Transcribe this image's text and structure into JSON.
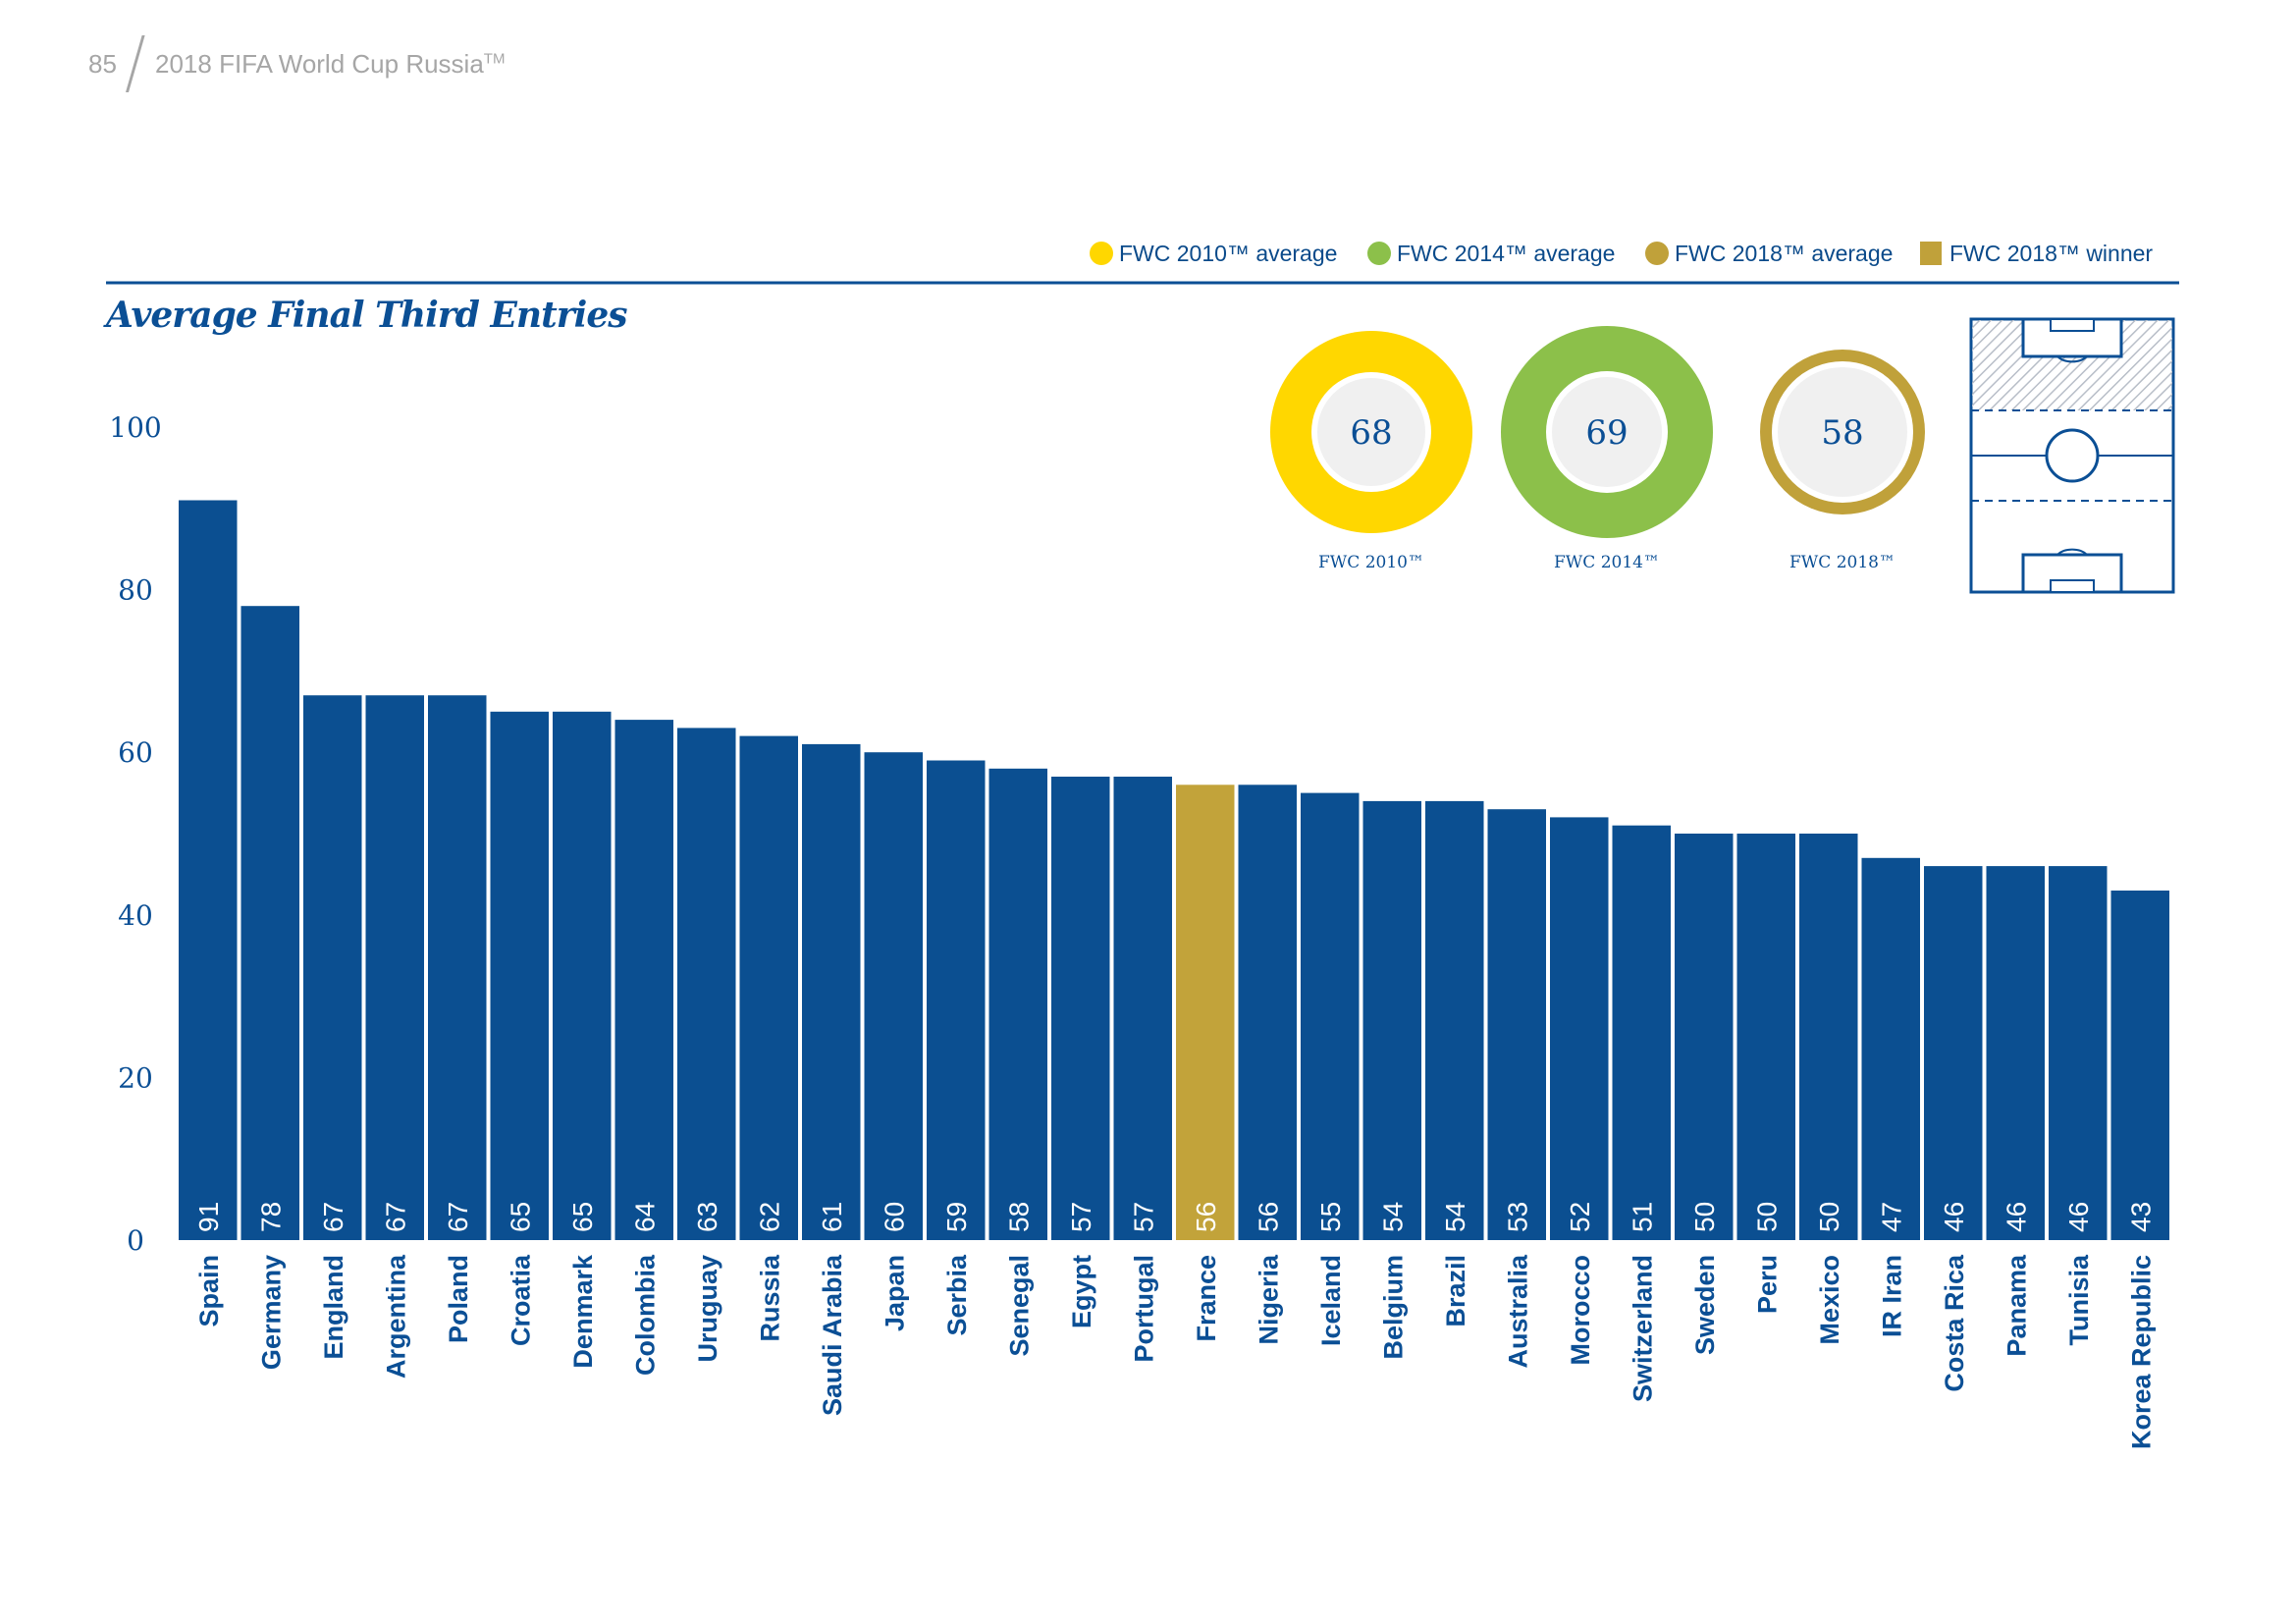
{
  "header": {
    "page_number": "85",
    "title": "2018 FIFA World Cup Russia",
    "title_tm": "TM"
  },
  "legend": [
    {
      "label": "FWC 2010™ average",
      "shape": "circle",
      "color": "#ffd700"
    },
    {
      "label": "FWC 2014™ average",
      "shape": "circle",
      "color": "#8cc04a"
    },
    {
      "label": "FWC 2018™ average",
      "shape": "circle",
      "color": "#c0a13a"
    },
    {
      "label": "FWC 2018™ winner",
      "shape": "square",
      "color": "#c0a13a"
    }
  ],
  "averages": [
    {
      "value": "68",
      "caption": "FWC 2010™",
      "color": "#ffd700",
      "size": "medium"
    },
    {
      "value": "69",
      "caption": "FWC 2014™",
      "color": "#8cc04a",
      "size": "large"
    },
    {
      "value": "58",
      "caption": "FWC 2018™",
      "color": "#c0a13a",
      "size": "small"
    }
  ],
  "pitch_icon": "pitch-final-third-icon",
  "colors": {
    "bar": "#0b4f91",
    "winner": "#c2a33a",
    "text": "#0b4f95",
    "rule": "#0b4f95"
  },
  "chart_data": {
    "type": "bar",
    "title": "Average Final Third Entries",
    "xlabel": "",
    "ylabel": "",
    "ylim": [
      0,
      100
    ],
    "yticks": [
      0,
      20,
      40,
      60,
      80,
      100
    ],
    "grid": false,
    "legend_position": "top-right",
    "categories": [
      "Spain",
      "Germany",
      "England",
      "Argentina",
      "Poland",
      "Croatia",
      "Denmark",
      "Colombia",
      "Uruguay",
      "Russia",
      "Saudi Arabia",
      "Japan",
      "Serbia",
      "Senegal",
      "Egypt",
      "Portugal",
      "France",
      "Nigeria",
      "Iceland",
      "Belgium",
      "Brazil",
      "Australia",
      "Morocco",
      "Switzerland",
      "Sweden",
      "Peru",
      "Mexico",
      "IR Iran",
      "Costa Rica",
      "Panama",
      "Tunisia",
      "Korea Republic"
    ],
    "values": [
      91,
      78,
      67,
      67,
      67,
      65,
      65,
      64,
      63,
      62,
      61,
      60,
      59,
      58,
      57,
      57,
      56,
      56,
      55,
      54,
      54,
      53,
      52,
      51,
      50,
      50,
      50,
      47,
      46,
      46,
      46,
      43
    ],
    "highlight": "France"
  }
}
